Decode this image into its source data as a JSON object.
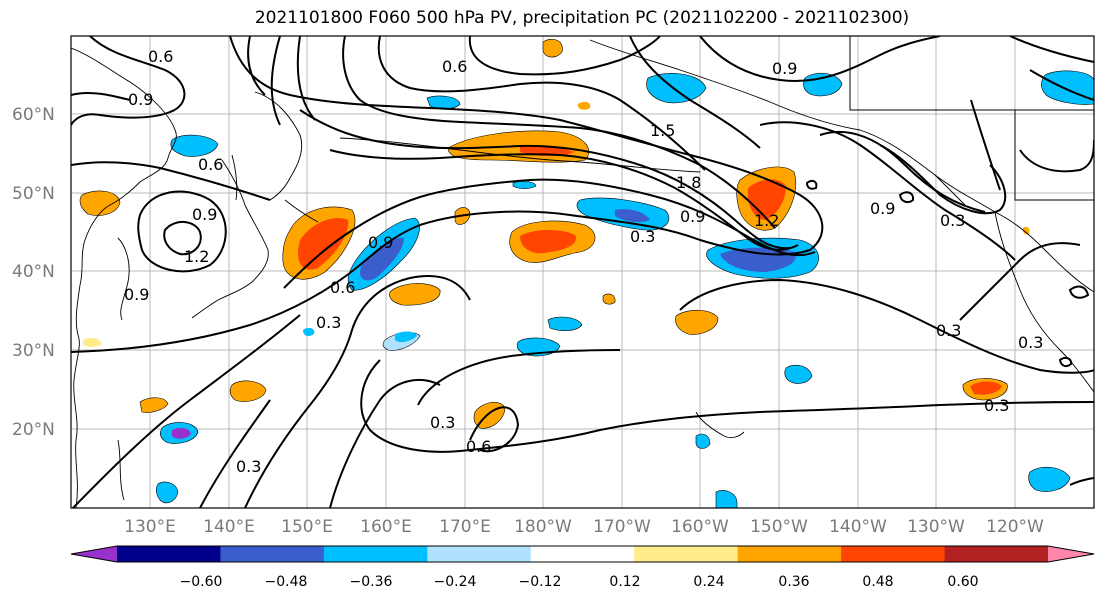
{
  "title": "2021101800 F060 500 hPa PV, precipitation PC (2021102200 - 2021102300)",
  "lat_labels": [
    "60°N",
    "50°N",
    "40°N",
    "30°N",
    "20°N"
  ],
  "lon_labels": [
    "130°E",
    "140°E",
    "150°E",
    "160°E",
    "170°E",
    "180°W",
    "170°W",
    "160°W",
    "150°W",
    "140°W",
    "130°W",
    "120°W"
  ],
  "contour_labels": [
    "0.6",
    "0.9",
    "0.6",
    "0.6",
    "0.9",
    "1.5",
    "1.8",
    "0.9",
    "1.2",
    "0.9",
    "0.9",
    "1.2",
    "0.9",
    "0.6",
    "0.3",
    "0.9",
    "0.3",
    "0.3",
    "0.3",
    "0.3",
    "0.6",
    "0.3",
    "0.3",
    "0.3"
  ],
  "colorbar": {
    "ticks": [
      "−0.60",
      "−0.48",
      "−0.36",
      "−0.24",
      "−0.12",
      "0.12",
      "0.24",
      "0.36",
      "0.48",
      "0.60"
    ],
    "colors": [
      "#9932cc",
      "#00008b",
      "#3a5fcd",
      "#00bfff",
      "#b0e2ff",
      "#ffffff",
      "#ffec8b",
      "#ffa500",
      "#ff4500",
      "#b22222",
      "#ff88aa"
    ]
  }
}
